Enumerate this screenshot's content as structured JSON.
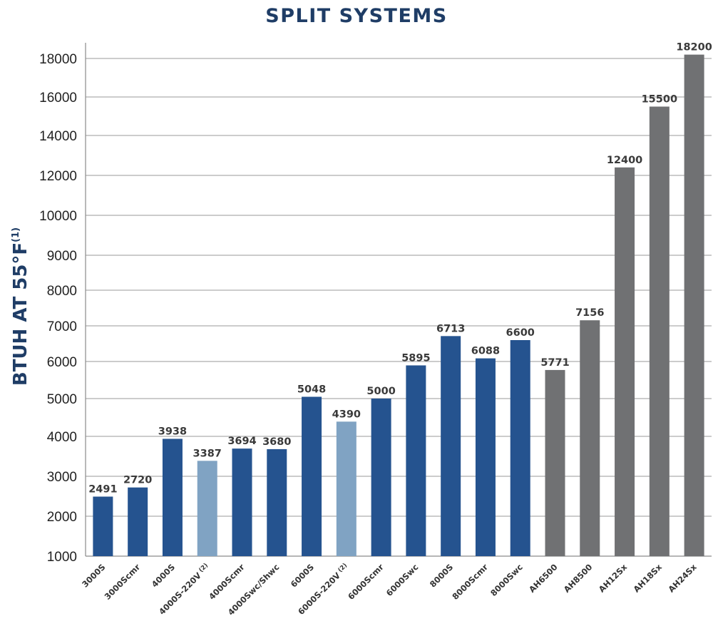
{
  "chart_data": {
    "type": "bar",
    "title": "SPLIT SYSTEMS",
    "ylabel": "BTUH AT 55°F",
    "ylabel_sup": "(1)",
    "yticks": [
      1000,
      2000,
      3000,
      4000,
      5000,
      6000,
      7000,
      8000,
      9000,
      10000,
      12000,
      14000,
      16000,
      18000
    ],
    "grid": true,
    "categories": [
      {
        "name": "3000S",
        "sup": ""
      },
      {
        "name": "3000Scmr",
        "sup": ""
      },
      {
        "name": "4000S",
        "sup": ""
      },
      {
        "name": "4000S-220V",
        "sup": "(2)"
      },
      {
        "name": "4000Scmr",
        "sup": ""
      },
      {
        "name": "4000Swc/Shwc",
        "sup": ""
      },
      {
        "name": "6000S",
        "sup": ""
      },
      {
        "name": "6000S-220V",
        "sup": "(2)"
      },
      {
        "name": "6000Scmr",
        "sup": ""
      },
      {
        "name": "6000Swc",
        "sup": ""
      },
      {
        "name": "8000S",
        "sup": ""
      },
      {
        "name": "8000Scmr",
        "sup": ""
      },
      {
        "name": "8000Swc",
        "sup": ""
      },
      {
        "name": "AH6500",
        "sup": ""
      },
      {
        "name": "AH8500",
        "sup": ""
      },
      {
        "name": "AH12Sx",
        "sup": ""
      },
      {
        "name": "AH18Sx",
        "sup": ""
      },
      {
        "name": "AH24Sx",
        "sup": ""
      }
    ],
    "values": [
      2491,
      2720,
      3938,
      3387,
      3694,
      3680,
      5048,
      4390,
      5000,
      5895,
      6713,
      6088,
      6600,
      5771,
      7156,
      12400,
      15500,
      18200
    ],
    "colors": [
      "#25538f",
      "#25538f",
      "#25538f",
      "#80a3c3",
      "#25538f",
      "#25538f",
      "#25538f",
      "#80a3c3",
      "#25538f",
      "#25538f",
      "#25538f",
      "#25538f",
      "#25538f",
      "#707173",
      "#707173",
      "#707173",
      "#707173",
      "#707173"
    ]
  }
}
